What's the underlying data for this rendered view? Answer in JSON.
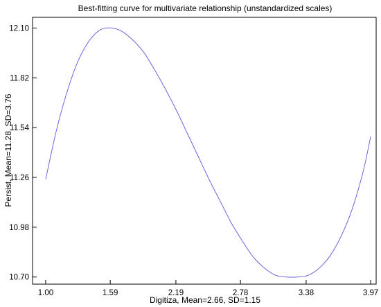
{
  "chart_data": {
    "type": "line",
    "title": "Best-fitting curve for multivariate relationship (unstandardized scales)",
    "xlabel": "Digitiza, Mean=2.66, SD=1.15",
    "ylabel": "Persist, Mean=11.28, SD=3.76",
    "xlim": [
      0.88,
      4.02
    ],
    "ylim": [
      10.66,
      12.16
    ],
    "x_ticks": [
      "1.00",
      "1.59",
      "2.19",
      "2.78",
      "3.38",
      "3.97"
    ],
    "y_ticks": [
      "12.10",
      "11.82",
      "11.54",
      "11.26",
      "10.98",
      "10.70"
    ],
    "grid": false,
    "line_color": "#6666dd",
    "series": [
      {
        "x": [
          1.0,
          1.1,
          1.2,
          1.3,
          1.4,
          1.5,
          1.6,
          1.7,
          1.8,
          1.9,
          2.0,
          2.1,
          2.2,
          2.3,
          2.4,
          2.5,
          2.6,
          2.7,
          2.8,
          2.9,
          3.0,
          3.1,
          3.2,
          3.3,
          3.4,
          3.5,
          3.6,
          3.7,
          3.8,
          3.9,
          3.97
        ],
        "y": [
          11.25,
          11.53,
          11.75,
          11.92,
          12.03,
          12.09,
          12.1,
          12.08,
          12.03,
          11.96,
          11.86,
          11.75,
          11.63,
          11.5,
          11.37,
          11.24,
          11.12,
          11.0,
          10.9,
          10.81,
          10.75,
          10.71,
          10.7,
          10.7,
          10.71,
          10.75,
          10.82,
          10.93,
          11.08,
          11.29,
          11.49
        ]
      }
    ]
  }
}
